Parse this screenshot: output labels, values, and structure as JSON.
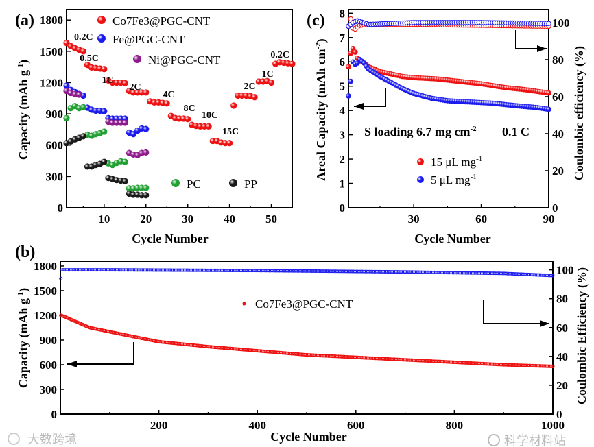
{
  "chart_data": [
    {
      "panel": "(a)",
      "type": "scatter",
      "xlabel": "Cycle Number",
      "ylabel": {
        "text": "Capacity (mAh g",
        "sup": "-1",
        "tail": ")"
      },
      "xlim": [
        1,
        55
      ],
      "ylim": [
        0,
        1900
      ],
      "xticks": [
        10,
        20,
        30,
        40,
        50
      ],
      "yticks": [
        0,
        300,
        600,
        900,
        1200,
        1500,
        1800
      ],
      "rate_labels": [
        "0.2C",
        "0.5C",
        "1C",
        "2C",
        "4C",
        "8C",
        "10C",
        "15C",
        "2C",
        "1C",
        "0.2C"
      ],
      "series": [
        {
          "name": "Co7Fe3@PGC-CNT",
          "color": "#ee1111",
          "x": [
            1,
            2,
            3,
            4,
            5,
            6,
            7,
            8,
            9,
            10,
            11,
            12,
            13,
            14,
            15,
            16,
            17,
            18,
            19,
            20,
            21,
            22,
            23,
            24,
            25,
            26,
            27,
            28,
            29,
            30,
            31,
            32,
            33,
            34,
            35,
            36,
            37,
            38,
            39,
            40,
            41,
            42,
            43,
            44,
            45,
            46,
            47,
            48,
            49,
            50,
            51,
            52,
            53,
            54,
            55
          ],
          "y": [
            1580,
            1550,
            1530,
            1515,
            1500,
            1370,
            1345,
            1340,
            1335,
            1330,
            1220,
            1200,
            1200,
            1200,
            1195,
            1120,
            1105,
            1105,
            1105,
            1105,
            1020,
            1010,
            1010,
            1005,
            1000,
            880,
            860,
            855,
            855,
            850,
            795,
            785,
            780,
            780,
            780,
            640,
            640,
            625,
            620,
            620,
            980,
            1075,
            1075,
            1075,
            1070,
            1060,
            1210,
            1210,
            1215,
            1200,
            1380,
            1395,
            1390,
            1385,
            1380
          ]
        },
        {
          "name": "Fe@PGC-CNT",
          "color": "#1a1aee",
          "x": [
            1,
            2,
            3,
            4,
            5,
            6,
            7,
            8,
            9,
            10,
            11,
            12,
            13,
            14,
            15,
            16,
            17,
            18,
            19,
            20
          ],
          "y": [
            1170,
            1130,
            1110,
            1090,
            1075,
            960,
            940,
            930,
            930,
            925,
            860,
            855,
            855,
            855,
            855,
            720,
            705,
            740,
            760,
            755
          ]
        },
        {
          "name": "Ni@PGC-CNT",
          "color": "#8e1a8e",
          "x": [
            1,
            2,
            3,
            4,
            11,
            12,
            13,
            14,
            15,
            16,
            17,
            18,
            19,
            20
          ],
          "y": [
            1120,
            1100,
            1090,
            1085,
            825,
            815,
            815,
            815,
            815,
            525,
            510,
            505,
            525,
            530
          ]
        },
        {
          "name": "PC",
          "color": "#22a033",
          "x": [
            1,
            2,
            3,
            4,
            5,
            6,
            7,
            8,
            9,
            10,
            11,
            12,
            13,
            14,
            15,
            16,
            17,
            18,
            19,
            20
          ],
          "y": [
            860,
            955,
            975,
            955,
            965,
            700,
            690,
            705,
            715,
            730,
            425,
            410,
            430,
            445,
            440,
            185,
            185,
            190,
            190,
            190
          ]
        },
        {
          "name": "PP",
          "color": "#1a1a1a",
          "x": [
            1,
            2,
            3,
            4,
            5,
            6,
            7,
            8,
            9,
            10,
            11,
            12,
            13,
            14,
            15,
            16,
            17,
            18,
            19,
            20
          ],
          "y": [
            620,
            635,
            655,
            670,
            685,
            395,
            395,
            410,
            420,
            440,
            285,
            275,
            265,
            260,
            255,
            135,
            125,
            125,
            120,
            120
          ]
        }
      ]
    },
    {
      "panel": "(b)",
      "type": "scatter",
      "xlabel": "Cycle Number",
      "ylabel": {
        "text": "Capacity (mAh g",
        "sup": "-1",
        "tail": ")"
      },
      "y2label": "Coulombic Efficiency (%)",
      "xlim": [
        0,
        1000
      ],
      "ylim": [
        0,
        1858
      ],
      "y2lim": [
        0,
        106
      ],
      "xticks": [
        200,
        400,
        600,
        800,
        1000
      ],
      "yticks": [
        0,
        300,
        600,
        900,
        1200,
        1500,
        1800
      ],
      "y2ticks": [
        0,
        20,
        40,
        60,
        80,
        100
      ],
      "legend": "Co7Fe3@PGC-CNT",
      "series": [
        {
          "name": "Capacity",
          "color": "#ee1111",
          "x": [
            1,
            10,
            60,
            150,
            200,
            300,
            400,
            500,
            600,
            700,
            800,
            900,
            1000
          ],
          "y": [
            1200,
            1180,
            1050,
            940,
            880,
            820,
            770,
            720,
            690,
            660,
            630,
            600,
            580
          ]
        },
        {
          "name": "Coulombic Efficiency",
          "color": "#1a1aee",
          "axis": "right",
          "x": [
            1,
            3,
            100,
            400,
            700,
            900,
            1000
          ],
          "y": [
            94,
            100,
            100,
            99.5,
            98.5,
            97.5,
            96
          ]
        }
      ]
    },
    {
      "panel": "(c)",
      "type": "scatter",
      "xlabel": "Cycle Number",
      "ylabel": {
        "text": "Areal Capacity (mAh cm",
        "sup": "-2",
        "tail": ")"
      },
      "y2label": "Coulombic efficiency (%)",
      "xlim": [
        1,
        90
      ],
      "ylim": [
        0,
        8.15
      ],
      "y2lim": [
        0,
        107
      ],
      "xticks": [
        30,
        60,
        90
      ],
      "yticks": [
        0,
        1,
        2,
        3,
        4,
        5,
        6,
        7,
        8
      ],
      "y2ticks": [
        0,
        20,
        40,
        60,
        80,
        100
      ],
      "annotation": {
        "text": "S loading 6.7 mg cm",
        "sup": "-2",
        "rate": "0.1 C"
      },
      "series": [
        {
          "name": "15 μL mg",
          "sup": "-1",
          "color": "#ee1111",
          "x": [
            1,
            2,
            3,
            4,
            5,
            8,
            10,
            15,
            20,
            25,
            30,
            40,
            50,
            60,
            70,
            80,
            90
          ],
          "y": [
            5.8,
            6.35,
            6.55,
            6.4,
            6.15,
            5.95,
            5.8,
            5.6,
            5.5,
            5.4,
            5.35,
            5.3,
            5.2,
            5.1,
            4.95,
            4.85,
            4.72
          ],
          "ce_x": [
            1,
            2,
            3,
            4,
            6,
            10,
            30,
            60,
            90
          ],
          "ce_y": [
            98,
            102,
            97,
            96.5,
            98.5,
            99,
            99,
            98.5,
            98
          ]
        },
        {
          "name": "5  μL mg",
          "sup": "-1",
          "color": "#1a1aee",
          "x": [
            1,
            2,
            3,
            4,
            5,
            6,
            8,
            10,
            15,
            20,
            25,
            30,
            38,
            45,
            55,
            65,
            75,
            85,
            90
          ],
          "y": [
            4.6,
            5.2,
            6.0,
            5.9,
            5.95,
            6.1,
            5.95,
            5.7,
            5.4,
            5.15,
            4.9,
            4.7,
            4.5,
            4.4,
            4.35,
            4.3,
            4.2,
            4.12,
            4.05
          ],
          "ce_x": [
            1,
            3,
            5,
            10,
            30,
            60,
            90
          ],
          "ce_y": [
            98,
            100,
            101,
            99,
            100,
            100,
            99.5
          ]
        }
      ]
    }
  ],
  "watermarks": [
    "科学材料站",
    "大数跨境"
  ]
}
